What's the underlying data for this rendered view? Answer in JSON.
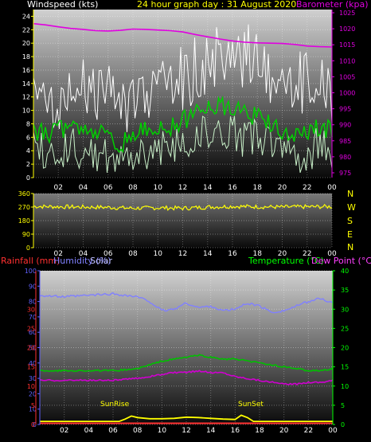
{
  "header": {
    "windspeed_label": "Windspeed (kts)",
    "title": "24 hour graph day : 31 August 2020",
    "barometer_label": "Barometer (kpa)"
  },
  "labels": {
    "rainfall": "Rainfall (mm)",
    "humidity": "Humidity (%)",
    "solar": "Solar",
    "temperature": "Temperature (°C)",
    "dewpoint": "Dew Point (°C)",
    "sunrise": "SunRise",
    "sunset": "SunSet"
  },
  "colors": {
    "windspeed": "#ffffff",
    "wind_avg": "#00d000",
    "wind_light": "#c8f0c8",
    "barometer": "#e000e0",
    "direction": "#ffff00",
    "humidity": "#8080ff",
    "temperature": "#00c000",
    "dewpoint": "#d000d0",
    "solar": "#ffff00",
    "rainfall": "#ff3030",
    "axis_yellow": "#ffff00",
    "axis_green": "#00ff00",
    "axis_blue": "#6060ff"
  },
  "chart_data": [
    {
      "type": "line",
      "name": "wind-barometer",
      "x_ticks": [
        "02",
        "04",
        "06",
        "08",
        "10",
        "12",
        "14",
        "16",
        "18",
        "20",
        "22",
        "00"
      ],
      "left_axis": {
        "ticks": [
          0,
          2,
          4,
          6,
          8,
          10,
          12,
          14,
          16,
          18,
          20,
          22,
          24
        ],
        "ylim": [
          0,
          25
        ]
      },
      "right_axis": {
        "ticks": [
          975,
          980,
          985,
          990,
          995,
          1000,
          1005,
          1010,
          1015,
          1020,
          1025
        ],
        "ylim": [
          973.5,
          1026
        ]
      },
      "series": [
        {
          "key": "barometer",
          "axis": "right",
          "x": [
            0,
            1,
            2,
            3,
            4,
            5,
            6,
            7,
            8,
            9,
            10,
            11,
            12,
            13,
            14,
            15,
            16,
            17,
            18,
            19,
            20,
            21,
            22,
            23,
            24
          ],
          "values": [
            1021.6,
            1021.2,
            1020.6,
            1020.1,
            1019.8,
            1019.4,
            1019.3,
            1019.5,
            1019.9,
            1019.8,
            1019.6,
            1019.4,
            1019.0,
            1018.2,
            1017.5,
            1016.8,
            1016.2,
            1015.8,
            1015.6,
            1015.5,
            1015.4,
            1015.1,
            1014.6,
            1014.4,
            1014.3
          ]
        },
        {
          "key": "gust",
          "axis": "left",
          "x": [
            0,
            1,
            2,
            3,
            4,
            5,
            6,
            7,
            8,
            9,
            10,
            11,
            12,
            13,
            14,
            15,
            16,
            17,
            18,
            19,
            20,
            21,
            22,
            23,
            24
          ],
          "values": [
            11,
            10,
            12,
            11,
            13,
            12,
            14,
            10,
            11,
            12,
            13,
            12,
            15,
            16,
            17,
            18,
            17,
            18,
            18,
            16,
            14,
            13,
            15,
            14,
            12
          ]
        },
        {
          "key": "wind_avg",
          "axis": "left",
          "x": [
            0,
            1,
            2,
            3,
            4,
            5,
            6,
            7,
            8,
            9,
            10,
            11,
            12,
            13,
            14,
            15,
            16,
            17,
            18,
            19,
            20,
            21,
            22,
            23,
            24
          ],
          "values": [
            7,
            6.5,
            7,
            7.5,
            8,
            7,
            6,
            5,
            6.5,
            7,
            7.5,
            7.5,
            8.5,
            9.5,
            10.5,
            11,
            10,
            9.5,
            9,
            8,
            6.5,
            6,
            7,
            7.5,
            7
          ]
        },
        {
          "key": "wind_low",
          "axis": "left",
          "x": [
            0,
            1,
            2,
            3,
            4,
            5,
            6,
            7,
            8,
            9,
            10,
            11,
            12,
            13,
            14,
            15,
            16,
            17,
            18,
            19,
            20,
            21,
            22,
            23,
            24
          ],
          "values": [
            4,
            3.5,
            4,
            4.5,
            4,
            3.5,
            3,
            2.5,
            3.5,
            4,
            4.5,
            4.5,
            5,
            6,
            6.5,
            7,
            6.5,
            6,
            5.5,
            5,
            4,
            3.5,
            4,
            4.5,
            4
          ]
        }
      ]
    },
    {
      "type": "line",
      "name": "wind-direction",
      "x_ticks": [
        "02",
        "04",
        "06",
        "08",
        "10",
        "12",
        "14",
        "16",
        "18",
        "20",
        "22",
        "00"
      ],
      "left_axis": {
        "ticks": [
          0,
          90,
          180,
          270,
          360
        ],
        "ylim": [
          0,
          360
        ]
      },
      "compass": [
        "N",
        "W",
        "S",
        "E",
        "N"
      ],
      "series": [
        {
          "key": "direction",
          "axis": "left",
          "x": [
            0,
            2,
            4,
            6,
            8,
            10,
            12,
            14,
            16,
            18,
            20,
            22,
            24
          ],
          "values": [
            275,
            272,
            270,
            268,
            262,
            265,
            262,
            270,
            275,
            272,
            270,
            272,
            273
          ]
        }
      ]
    },
    {
      "type": "line",
      "name": "temp-humidity-rain",
      "x_ticks": [
        "02",
        "04",
        "06",
        "08",
        "10",
        "12",
        "14",
        "16",
        "18",
        "20",
        "22",
        "00"
      ],
      "left_axis": {
        "ticks": [
          0,
          10,
          20,
          30,
          40,
          50,
          60,
          70,
          80,
          90,
          100
        ],
        "ylim": [
          0,
          100
        ]
      },
      "rain_axis": {
        "ticks": [
          0,
          5,
          10,
          15,
          20,
          25,
          30
        ]
      },
      "right_axis": {
        "ticks": [
          0,
          5,
          10,
          15,
          20,
          25,
          30,
          35,
          40
        ],
        "ylim": [
          0,
          40
        ]
      },
      "series": [
        {
          "key": "humidity",
          "axis": "left",
          "x": [
            0,
            2,
            4,
            6,
            8,
            9,
            10,
            11,
            12,
            13,
            14,
            15,
            16,
            17,
            18,
            19,
            20,
            21,
            22,
            23,
            24
          ],
          "values": [
            84,
            83,
            84,
            85,
            83,
            80,
            74,
            75,
            79,
            76,
            77,
            74,
            75,
            79,
            77,
            73,
            74,
            77,
            80,
            82,
            79
          ]
        },
        {
          "key": "temperature",
          "axis": "right",
          "x": [
            0,
            2,
            4,
            6,
            8,
            9,
            10,
            11,
            12,
            13,
            14,
            15,
            16,
            17,
            18,
            19,
            20,
            21,
            22,
            23,
            24
          ],
          "values": [
            14,
            14,
            14,
            14,
            14.5,
            15.5,
            16.5,
            17,
            17.5,
            18,
            17.5,
            17,
            17,
            16.5,
            16,
            15.5,
            15,
            14.5,
            14,
            14,
            14.5
          ]
        },
        {
          "key": "dewpoint",
          "axis": "right",
          "x": [
            0,
            2,
            4,
            6,
            8,
            9,
            10,
            11,
            12,
            13,
            14,
            15,
            16,
            17,
            18,
            19,
            20,
            21,
            22,
            23,
            24
          ],
          "values": [
            11.5,
            11.5,
            11.5,
            11.5,
            12,
            12.5,
            13,
            13.5,
            13.5,
            14,
            13.5,
            13.5,
            12.5,
            12,
            11.5,
            11,
            10.5,
            10.5,
            11,
            11,
            11.5
          ]
        },
        {
          "key": "solar",
          "axis": "right",
          "x": [
            0,
            6.5,
            7,
            7.5,
            8,
            9,
            10,
            11,
            12,
            13,
            14,
            15,
            16,
            16.5,
            17,
            17.5,
            24
          ],
          "values": [
            0.8,
            0.8,
            1.4,
            2.2,
            1.8,
            1.5,
            1.5,
            1.6,
            1.9,
            1.8,
            1.6,
            1.4,
            1.3,
            2.4,
            1.8,
            0.8,
            0.8
          ]
        },
        {
          "key": "rainfall",
          "axis": "right",
          "x": [
            0,
            24
          ],
          "values": [
            0.3,
            0.3
          ]
        }
      ]
    }
  ]
}
